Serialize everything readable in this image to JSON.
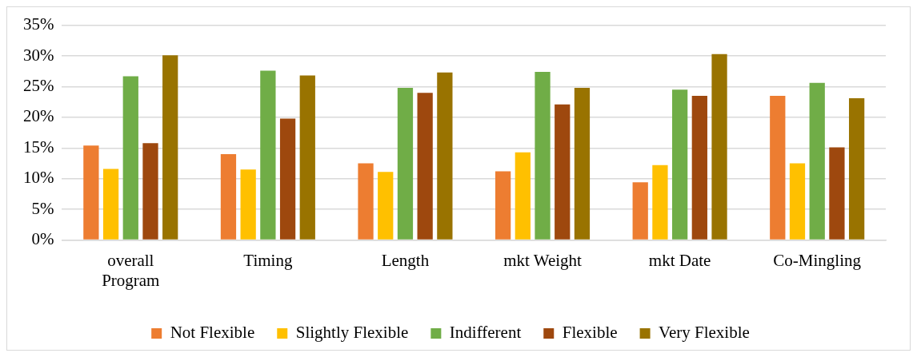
{
  "chart_data": {
    "type": "bar",
    "categories": [
      "overall Program",
      "Timing",
      "Length",
      "mkt Weight",
      "mkt Date",
      "Co-Mingling"
    ],
    "series": [
      {
        "name": "Not Flexible",
        "color": "#ed7d31",
        "values": [
          15.4,
          14.0,
          12.5,
          11.2,
          9.4,
          23.5
        ]
      },
      {
        "name": "Slightly Flexible",
        "color": "#ffc000",
        "values": [
          11.6,
          11.5,
          11.1,
          14.3,
          12.2,
          12.5
        ]
      },
      {
        "name": "Indifferent",
        "color": "#70ad47",
        "values": [
          26.7,
          27.6,
          24.8,
          27.4,
          24.5,
          25.6
        ]
      },
      {
        "name": "Flexible",
        "color": "#9e480e",
        "values": [
          15.8,
          19.8,
          24.0,
          22.1,
          23.5,
          15.1
        ]
      },
      {
        "name": "Very Flexible",
        "color": "#997300",
        "values": [
          30.1,
          26.8,
          27.3,
          24.8,
          30.3,
          23.1
        ]
      }
    ],
    "ylim": [
      0,
      35
    ],
    "yticks": [
      {
        "value": 0,
        "label": "0%"
      },
      {
        "value": 5,
        "label": "5%"
      },
      {
        "value": 10,
        "label": "10%"
      },
      {
        "value": 15,
        "label": "15%"
      },
      {
        "value": 20,
        "label": "20%"
      },
      {
        "value": 25,
        "label": "25%"
      },
      {
        "value": 30,
        "label": "30%"
      },
      {
        "value": 35,
        "label": "35%"
      }
    ],
    "grid": "y",
    "legend": "bottom"
  }
}
